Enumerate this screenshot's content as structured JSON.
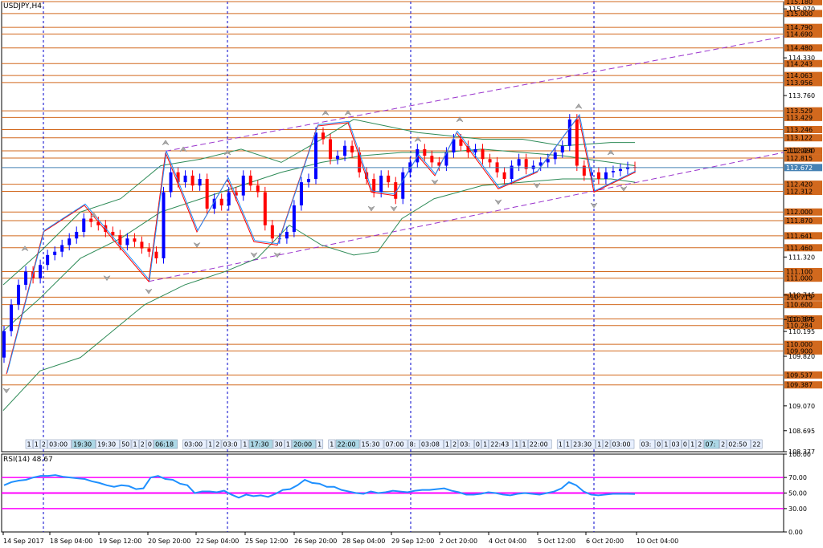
{
  "header": {
    "symbol": "USDJPY,H4"
  },
  "rsi": {
    "label": "RSI(14) 48.67"
  },
  "colors": {
    "bg": "#ffffff",
    "grid": "#000000",
    "hline": "#d2691e",
    "bull": "#0000ff",
    "bear": "#ff0000",
    "bands": "#2e8b57",
    "channel": "#9932cc",
    "rsi": "#1e90ff",
    "rsilevel": "#ff00ff",
    "current": "#4682b4"
  },
  "chart_data": [
    {
      "type": "candlestick",
      "symbol": "USDJPY",
      "timeframe": "H4",
      "ylim": [
        108.377,
        115.18
      ],
      "current_price": "112.672",
      "price_levels": [
        "115.180",
        "115.000",
        "114.790",
        "114.690",
        "114.480",
        "114.243",
        "114.063",
        "113.956",
        "113.529",
        "113.429",
        "113.246",
        "113.122",
        "112.924",
        "112.815",
        "112.420",
        "112.312",
        "112.000",
        "111.870",
        "111.641",
        "111.460",
        "111.100",
        "111.000",
        "110.713",
        "110.600",
        "110.384",
        "110.284",
        "110.000",
        "109.900",
        "109.537",
        "109.387"
      ],
      "y_ticks": [
        "115.070",
        "114.330",
        "113.760",
        "112.930",
        "111.320",
        "110.745",
        "110.375",
        "110.195",
        "109.820",
        "109.070",
        "108.695",
        "108.377"
      ],
      "x_ticks": [
        "14 Sep 2017",
        "18 Sep 04:00",
        "19 Sep 12:00",
        "20 Sep 20:00",
        "22 Sep 04:00",
        "25 Sep 12:00",
        "26 Sep 20:00",
        "28 Sep 04:00",
        "29 Sep 12:00",
        "2 Oct 20:00",
        "4 Oct 04:00",
        "5 Oct 12:00",
        "6 Oct 20:00",
        "10 Oct 04:00"
      ],
      "time_labels": [
        "1",
        "1",
        "2",
        "03:00",
        "19:30",
        "19:30",
        "50",
        "1",
        "2",
        "0",
        "06:18",
        "03:00",
        "1",
        "2",
        "03:0",
        "1",
        "17:30",
        "30",
        "1",
        "20:00",
        "1",
        "1",
        "22:00",
        "15:30",
        "07:00",
        "8:",
        "03:08",
        "1",
        "2",
        "03:",
        "0",
        "1",
        "22:43",
        "1",
        "1",
        "22:00",
        "1",
        "1",
        "23:30",
        "1",
        "2",
        "03:00",
        "03:",
        "0",
        "1",
        "03",
        "0",
        "1",
        "2",
        "07:",
        "2",
        "02:50",
        "22"
      ],
      "series_close": [
        110.2,
        110.6,
        110.9,
        111.1,
        111.0,
        111.2,
        111.35,
        111.4,
        111.5,
        111.6,
        111.7,
        111.9,
        111.85,
        111.8,
        111.7,
        111.65,
        111.5,
        111.6,
        111.55,
        111.45,
        111.4,
        111.3,
        112.3,
        112.6,
        112.45,
        112.55,
        112.4,
        112.5,
        112.05,
        112.2,
        112.1,
        112.3,
        112.25,
        112.55,
        112.4,
        112.3,
        111.8,
        111.6,
        111.6,
        111.7,
        112.1,
        112.45,
        112.5,
        113.2,
        113.1,
        112.8,
        112.85,
        113.0,
        112.9,
        112.6,
        112.5,
        112.3,
        112.55,
        112.45,
        112.2,
        112.6,
        112.75,
        112.95,
        112.85,
        112.75,
        112.7,
        112.9,
        113.1,
        113.0,
        112.9,
        112.95,
        112.8,
        112.75,
        112.6,
        112.5,
        112.7,
        112.8,
        112.65,
        112.7,
        112.75,
        112.8,
        112.9,
        113.0,
        113.4,
        112.7,
        112.55,
        112.6,
        112.5,
        112.6,
        112.62,
        112.65,
        112.68,
        112.67
      ],
      "rsi": {
        "ylim": [
          0,
          100
        ],
        "levels": [
          70,
          50,
          30
        ],
        "ticks": [
          "100.00",
          "70.00",
          "50.00",
          "30.00",
          "0.00"
        ],
        "current": 48.67,
        "values": [
          60,
          64,
          66,
          67,
          70,
          72,
          72,
          73,
          71,
          70,
          69,
          68,
          65,
          63,
          60,
          58,
          60,
          59,
          55,
          56,
          70,
          72,
          68,
          67,
          62,
          60,
          50,
          52,
          52,
          51,
          53,
          48,
          44,
          48,
          46,
          47,
          45,
          49,
          54,
          55,
          60,
          67,
          63,
          62,
          58,
          58,
          54,
          52,
          50,
          49,
          52,
          50,
          51,
          53,
          52,
          51,
          53,
          54,
          54,
          55,
          56,
          53,
          51,
          48,
          48,
          49,
          51,
          50,
          48,
          47,
          49,
          50,
          49,
          48,
          50,
          52,
          56,
          64,
          60,
          52,
          48,
          47,
          48,
          49,
          49,
          49,
          48.67
        ]
      }
    }
  ]
}
